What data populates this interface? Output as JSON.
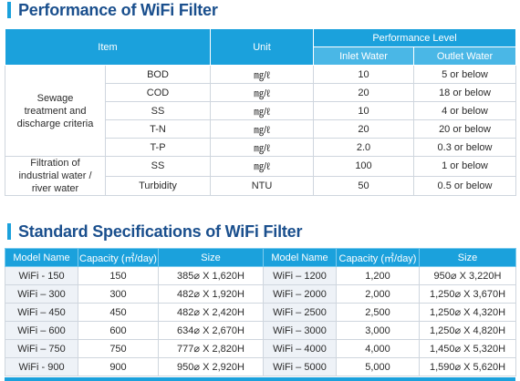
{
  "section1": {
    "title": "Performance of WiFi Filter",
    "headers": {
      "item": "Item",
      "unit": "Unit",
      "performance_level": "Performance Level",
      "inlet": "Inlet Water",
      "outlet": "Outlet Water"
    },
    "groups": {
      "sewage": "Sewage treatment and discharge criteria",
      "filtration": "Filtration of industrial water / river water"
    },
    "rows": [
      {
        "item": "BOD",
        "unit": "㎎/ℓ",
        "inlet": "10",
        "outlet": "5 or below"
      },
      {
        "item": "COD",
        "unit": "㎎/ℓ",
        "inlet": "20",
        "outlet": "18 or below"
      },
      {
        "item": "SS",
        "unit": "㎎/ℓ",
        "inlet": "10",
        "outlet": "4 or below"
      },
      {
        "item": "T-N",
        "unit": "㎎/ℓ",
        "inlet": "20",
        "outlet": "20 or below"
      },
      {
        "item": "T-P",
        "unit": "㎎/ℓ",
        "inlet": "2.0",
        "outlet": "0.3 or below"
      },
      {
        "item": "SS",
        "unit": "㎎/ℓ",
        "inlet": "100",
        "outlet": "1 or below"
      },
      {
        "item": "Turbidity",
        "unit": "NTU",
        "inlet": "50",
        "outlet": "0.5 or below"
      }
    ]
  },
  "section2": {
    "title": "Standard Specifications of WiFi Filter",
    "headers": {
      "model": "Model Name",
      "capacity": "Capacity (㎥/day)",
      "size": "Size"
    },
    "rows": [
      {
        "m1": "WiFi - 150",
        "c1": "150",
        "s1": "385⌀ X 1,620H",
        "m2": "WiFi – 1200",
        "c2": "1,200",
        "s2": "950⌀ X 3,220H"
      },
      {
        "m1": "WiFi – 300",
        "c1": "300",
        "s1": "482⌀ X 1,920H",
        "m2": "WiFi – 2000",
        "c2": "2,000",
        "s2": "1,250⌀ X 3,670H"
      },
      {
        "m1": "WiFi – 450",
        "c1": "450",
        "s1": "482⌀ X 2,420H",
        "m2": "WiFi – 2500",
        "c2": "2,500",
        "s2": "1,250⌀ X 4,320H"
      },
      {
        "m1": "WiFi – 600",
        "c1": "600",
        "s1": "634⌀ X 2,670H",
        "m2": "WiFi – 3000",
        "c2": "3,000",
        "s2": "1,250⌀ X 4,820H"
      },
      {
        "m1": "WiFi – 750",
        "c1": "750",
        "s1": "777⌀ X 2,820H",
        "m2": "WiFi – 4000",
        "c2": "4,000",
        "s2": "1,450⌀ X 5,320H"
      },
      {
        "m1": "WiFi - 900",
        "c1": "900",
        "s1": "950⌀ X 2,920H",
        "m2": "WiFi – 5000",
        "c2": "5,000",
        "s2": "1,590⌀ X 5,620H"
      }
    ]
  },
  "colors": {
    "accent": "#1ba1dc",
    "title": "#1a4f8d",
    "header_light": "#4ab7e6",
    "shade": "#eef2f7"
  }
}
